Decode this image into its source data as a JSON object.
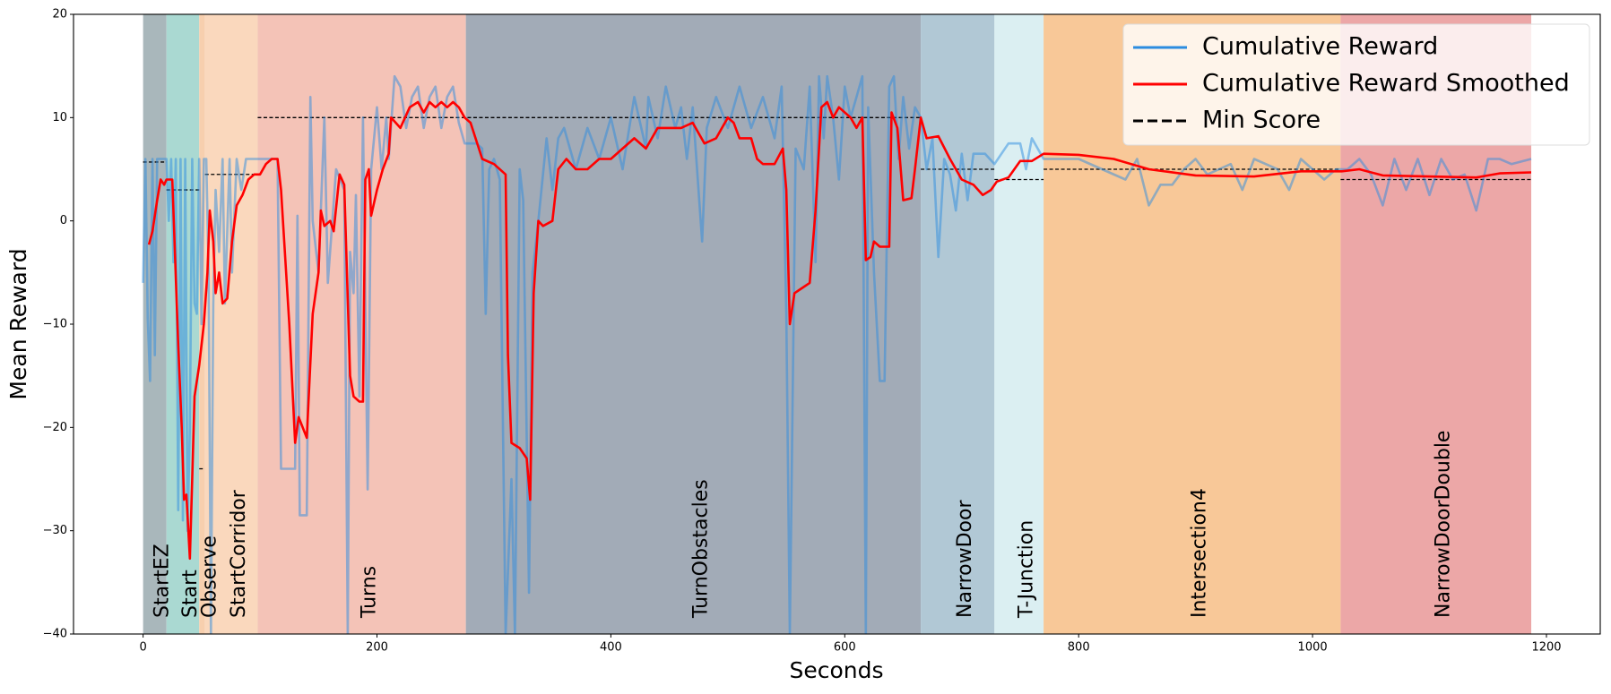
{
  "chart_data": {
    "type": "line",
    "x_label": "Seconds",
    "y_label": "Mean Reward",
    "xlim": [
      -59.5,
      1246
    ],
    "ylim": [
      -40,
      20
    ],
    "xticks": [
      0,
      200,
      400,
      600,
      800,
      1000,
      1200
    ],
    "yticks": [
      {
        "value": -40,
        "label": "−40"
      },
      {
        "value": -30,
        "label": "−30"
      },
      {
        "value": -20,
        "label": "−20"
      },
      {
        "value": -10,
        "label": "−10"
      },
      0,
      10,
      20
    ],
    "legend": "upper right",
    "stages": {
      "labels": [
        "StartEZ",
        "Start",
        "Observe",
        "StartCorridor",
        "Turns",
        "TurnObstacles",
        "NarrowDoor",
        "T-Junction",
        "Intersection4",
        "NarrowDoorDouble"
      ],
      "start": [
        0,
        20,
        48,
        53,
        98,
        276,
        665,
        728,
        770,
        1024
      ],
      "end": [
        20,
        48,
        53,
        98,
        276,
        665,
        728,
        770,
        1024,
        1187
      ],
      "colors": [
        "#a9b7bb",
        "#aad9d2",
        "#f7cfae",
        "#fad8bd",
        "#f4c3b7",
        "#a2abb7",
        "#b1c8d5",
        "#dbeff2",
        "#f8c898",
        "#eca7a7"
      ]
    },
    "series": [
      {
        "name": "Cumulative Reward",
        "color": "#2b8ce0",
        "x": [
          0,
          2,
          4,
          6,
          8,
          10,
          12,
          15,
          18,
          20,
          22,
          24,
          26,
          28,
          30,
          32,
          34,
          36,
          38,
          40,
          42,
          44,
          46,
          48,
          50,
          52,
          54,
          56,
          58,
          60,
          62,
          65,
          68,
          70,
          74,
          76,
          80,
          84,
          88,
          92,
          98,
          105,
          115,
          118,
          125,
          130,
          132,
          134,
          140,
          143,
          145,
          150,
          155,
          158,
          165,
          172,
          175,
          177,
          180,
          182,
          185,
          188,
          192,
          195,
          200,
          204,
          208,
          210,
          215,
          220,
          225,
          230,
          235,
          240,
          245,
          250,
          255,
          260,
          265,
          270,
          275,
          285,
          290,
          293,
          296,
          300,
          305,
          310,
          315,
          318,
          322,
          325,
          330,
          333,
          338,
          345,
          350,
          355,
          360,
          370,
          380,
          390,
          400,
          410,
          420,
          430,
          432,
          440,
          447,
          455,
          460,
          465,
          470,
          478,
          482,
          490,
          500,
          510,
          520,
          530,
          540,
          546,
          550,
          553,
          558,
          565,
          570,
          575,
          578,
          582,
          585,
          590,
          595,
          600,
          605,
          610,
          615,
          618,
          620,
          625,
          630,
          634,
          638,
          642,
          646,
          650,
          655,
          660,
          665,
          670,
          675,
          680,
          685,
          690,
          695,
          700,
          705,
          710,
          720,
          728,
          740,
          750,
          755,
          760,
          770,
          800,
          820,
          840,
          850,
          860,
          870,
          880,
          890,
          900,
          910,
          920,
          930,
          940,
          950,
          960,
          970,
          980,
          990,
          1000,
          1010,
          1020,
          1030,
          1040,
          1050,
          1060,
          1070,
          1080,
          1090,
          1100,
          1110,
          1120,
          1130,
          1140,
          1150,
          1160,
          1170,
          1187
        ],
        "values": [
          -6,
          6,
          -9.5,
          -15.5,
          6,
          -13,
          6,
          6,
          6,
          6,
          0,
          6,
          -4,
          6,
          -28,
          6,
          -29,
          6,
          -30,
          -20,
          6,
          -8,
          -9,
          6,
          -10,
          6,
          6,
          -5,
          -40,
          -8,
          3,
          -3,
          6,
          -8,
          6,
          -5,
          6,
          3,
          6,
          6,
          6,
          6,
          6,
          -24,
          -24,
          -24,
          0.5,
          -28.5,
          -28.5,
          12,
          0,
          -5,
          10,
          -6,
          5,
          3,
          -40,
          -3,
          -7,
          2.5,
          -17,
          10,
          -26,
          5,
          11,
          5,
          10,
          6,
          14,
          13,
          9,
          12,
          13,
          9,
          12,
          13,
          9,
          12,
          13,
          9.5,
          7.5,
          7.5,
          7,
          -9,
          5,
          6,
          4,
          -40,
          -25,
          -40,
          5,
          2,
          -36,
          -5,
          0,
          8,
          3,
          8,
          9,
          5,
          9,
          6,
          10,
          5,
          12,
          7,
          12,
          8,
          13,
          9,
          11,
          6,
          11,
          -2,
          9,
          12,
          9,
          13,
          9,
          12,
          8,
          13,
          -9,
          -40,
          7,
          5,
          13,
          -4,
          14,
          8,
          14,
          10,
          4,
          13,
          10,
          12,
          14,
          -40,
          11,
          -5,
          -15.5,
          -15.5,
          13,
          14,
          6,
          12,
          7,
          11,
          10,
          5,
          8,
          -3.5,
          6,
          4.5,
          1,
          6.5,
          2,
          6.5,
          6.5,
          5.5,
          7.5,
          7.5,
          5,
          8,
          6,
          6,
          5,
          4,
          6,
          1.5,
          3.5,
          3.5,
          5,
          6,
          4.5,
          5,
          5.5,
          3,
          6,
          5.5,
          5,
          3,
          6,
          5,
          4,
          5,
          5,
          6,
          4.5,
          1.5,
          6,
          3,
          6,
          2.5,
          6,
          4,
          4.5,
          1,
          6,
          6,
          5.5,
          6
        ]
      },
      {
        "name": "Cumulative Reward Smoothed",
        "color": "#ff0000",
        "x": [
          5,
          8,
          12,
          15,
          18,
          20,
          25,
          30,
          33,
          35,
          37,
          40,
          42,
          44,
          48,
          52,
          55,
          57,
          60,
          62,
          65,
          68,
          72,
          76,
          80,
          85,
          90,
          95,
          100,
          105,
          110,
          115,
          118,
          125,
          130,
          133,
          140,
          145,
          150,
          152,
          155,
          160,
          163,
          168,
          172,
          177,
          180,
          185,
          188,
          190,
          193,
          195,
          200,
          205,
          210,
          212,
          220,
          228,
          235,
          240,
          245,
          250,
          255,
          260,
          265,
          270,
          275,
          280,
          290,
          300,
          310,
          312,
          315,
          322,
          328,
          331,
          334,
          338,
          342,
          350,
          355,
          362,
          370,
          380,
          390,
          400,
          410,
          420,
          430,
          440,
          450,
          460,
          470,
          475,
          480,
          490,
          495,
          500,
          505,
          510,
          520,
          525,
          530,
          540,
          547,
          550,
          553,
          557,
          570,
          575,
          580,
          585,
          590,
          595,
          605,
          610,
          615,
          618,
          622,
          625,
          630,
          638,
          640,
          645,
          650,
          657,
          660,
          665,
          670,
          680,
          690,
          700,
          710,
          718,
          725,
          730,
          740,
          750,
          760,
          770,
          800,
          830,
          860,
          900,
          950,
          990,
          1025,
          1040,
          1060,
          1100,
          1140,
          1160,
          1187
        ],
        "values": [
          -2.3,
          -1,
          2,
          4,
          3.5,
          4,
          4,
          -12,
          -20,
          -27,
          -26.5,
          -32.7,
          -25,
          -17,
          -14,
          -10,
          -5,
          1,
          -2,
          -7,
          -5,
          -8,
          -7.5,
          -2,
          1.5,
          2.5,
          4,
          4.5,
          4.5,
          5.5,
          6,
          6,
          3,
          -10,
          -21.5,
          -19,
          -21,
          -9,
          -5,
          1,
          -0.5,
          0,
          -1,
          4.5,
          3.5,
          -15,
          -17,
          -17.5,
          -17.5,
          4,
          5,
          0.5,
          3,
          5,
          6.5,
          10,
          9,
          11,
          11.5,
          10.5,
          11.5,
          11,
          11.5,
          11,
          11.5,
          11,
          10,
          9.5,
          6,
          5.5,
          4.5,
          -13,
          -21.5,
          -22,
          -23,
          -27,
          -7,
          0,
          -0.5,
          0,
          5,
          6,
          5,
          5,
          6,
          6,
          7,
          8,
          7,
          9,
          9,
          9,
          9.5,
          8.5,
          7.5,
          8,
          9,
          10,
          9.5,
          8,
          8,
          6,
          5.5,
          5.5,
          7,
          3,
          -10,
          -7,
          -6,
          1,
          11,
          11.5,
          10,
          11,
          10,
          9,
          10,
          -3.8,
          -3.5,
          -2,
          -2.5,
          -2.5,
          10.5,
          9,
          2,
          2.2,
          5,
          10,
          8,
          8.2,
          6,
          4,
          3.5,
          2.5,
          3,
          3.8,
          4.2,
          5.8,
          5.8,
          6.5,
          6.4,
          6,
          5,
          4.4,
          4.3,
          4.8,
          4.8,
          5,
          4.4,
          4.3,
          4.2,
          4.6,
          4.7
        ]
      },
      {
        "name": "Min Score",
        "color": "#000000",
        "style": "dashed",
        "x_start": [
          0,
          20,
          48,
          53,
          98,
          665,
          728,
          770,
          1024
        ],
        "x_end": [
          20,
          48,
          53,
          98,
          665,
          728,
          770,
          1024,
          1187
        ],
        "values": [
          5.7,
          3,
          -24,
          4.5,
          10,
          5,
          4,
          5,
          4
        ]
      }
    ]
  }
}
